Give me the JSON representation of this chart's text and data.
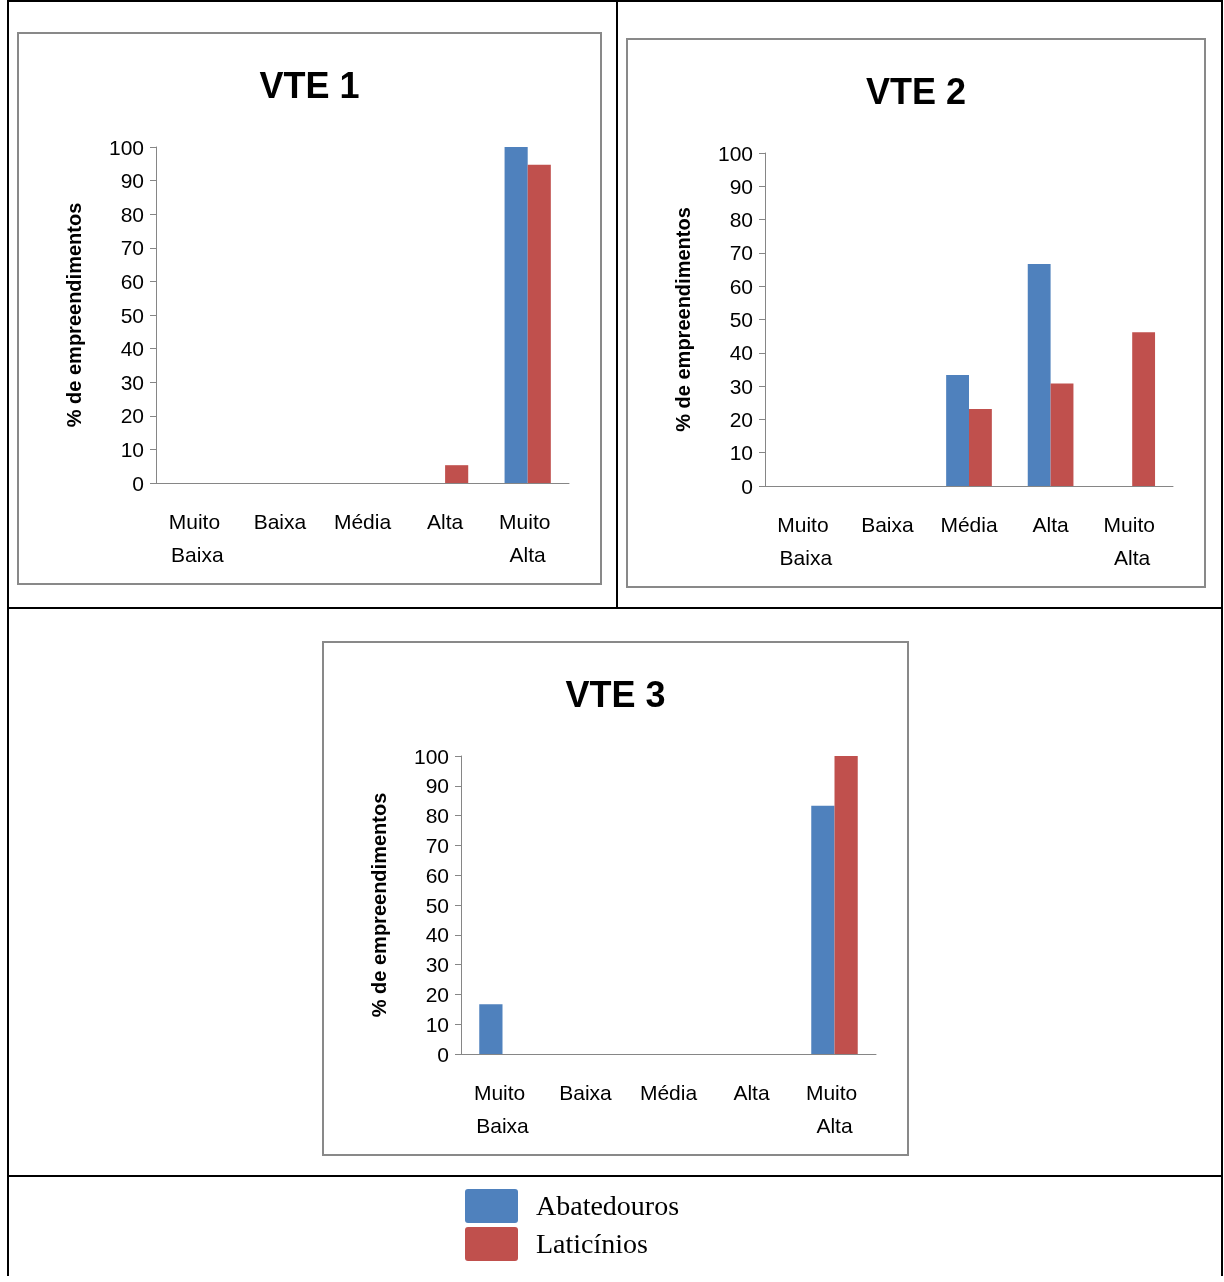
{
  "chart_data": [
    {
      "type": "bar",
      "title": "VTE 1",
      "ylabel": "% de empreendimentos",
      "categories": [
        "Muito Baixa",
        "Baixa",
        "Média",
        "Alta",
        "Muito Alta"
      ],
      "ylim": [
        0,
        100
      ],
      "yticks": [
        0,
        10,
        20,
        30,
        40,
        50,
        60,
        70,
        80,
        90,
        100
      ],
      "grid": false,
      "legend": "bottom",
      "series": [
        {
          "name": "Abatedouros",
          "color": "#4f81bd",
          "values": [
            0,
            0,
            0,
            0,
            100
          ]
        },
        {
          "name": "Laticínios",
          "color": "#c0504d",
          "values": [
            0,
            0,
            0,
            5.3,
            94.7
          ]
        }
      ]
    },
    {
      "type": "bar",
      "title": "VTE 2",
      "ylabel": "% de empreendimentos",
      "categories": [
        "Muito Baixa",
        "Baixa",
        "Média",
        "Alta",
        "Muito Alta"
      ],
      "ylim": [
        0,
        100
      ],
      "yticks": [
        0,
        10,
        20,
        30,
        40,
        50,
        60,
        70,
        80,
        90,
        100
      ],
      "grid": false,
      "legend": "bottom",
      "series": [
        {
          "name": "Abatedouros",
          "color": "#4f81bd",
          "values": [
            0,
            0,
            33.3,
            66.7,
            0
          ]
        },
        {
          "name": "Laticínios",
          "color": "#c0504d",
          "values": [
            0,
            0,
            23.1,
            30.8,
            46.2
          ]
        }
      ]
    },
    {
      "type": "bar",
      "title": "VTE 3",
      "ylabel": "% de empreendimentos",
      "categories": [
        "Muito Baixa",
        "Baixa",
        "Média",
        "Alta",
        "Muito Alta"
      ],
      "ylim": [
        0,
        100
      ],
      "yticks": [
        0,
        10,
        20,
        30,
        40,
        50,
        60,
        70,
        80,
        90,
        100
      ],
      "grid": false,
      "legend": "bottom",
      "series": [
        {
          "name": "Abatedouros",
          "color": "#4f81bd",
          "values": [
            16.7,
            0,
            0,
            0,
            83.3
          ]
        },
        {
          "name": "Laticínios",
          "color": "#c0504d",
          "values": [
            0,
            0,
            0,
            0,
            100
          ]
        }
      ]
    }
  ]
}
